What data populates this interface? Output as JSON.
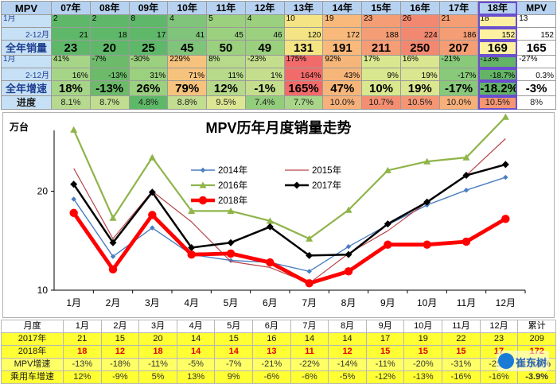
{
  "top_table": {
    "corner": "MPV",
    "years": [
      "07年",
      "08年",
      "09年",
      "10年",
      "11年",
      "12年",
      "13年",
      "14年",
      "15年",
      "16年",
      "17年",
      "18年",
      "MPV"
    ],
    "rows": {
      "jan": {
        "label": "1月",
        "values": [
          "2",
          "2",
          "8",
          "4",
          "5",
          "4",
          "10",
          "19",
          "23",
          "26",
          "21",
          "18",
          "13"
        ]
      },
      "feb": {
        "label": "2-12月",
        "values": [
          "21",
          "18",
          "17",
          "41",
          "45",
          "46",
          "120",
          "172",
          "188",
          "224",
          "186",
          "152",
          "152"
        ]
      },
      "full": {
        "label": "全年销量",
        "values": [
          "23",
          "20",
          "25",
          "45",
          "50",
          "49",
          "131",
          "191",
          "211",
          "250",
          "207",
          "169",
          "165"
        ]
      },
      "jan_g": {
        "label": "1月",
        "values": [
          "41%",
          "-7%",
          "-30%",
          "229%",
          "8%",
          "-23%",
          "175%",
          "92%",
          "17%",
          "16%",
          "-21%",
          "-13%",
          "-27%"
        ]
      },
      "feb_g": {
        "label": "2-12月",
        "values": [
          "16%",
          "-13%",
          "31%",
          "71%",
          "11%",
          "1%",
          "164%",
          "43%",
          "9%",
          "19%",
          "-17%",
          "-18.7%",
          "0.3%"
        ]
      },
      "full_g": {
        "label": "全年增速",
        "values": [
          "18%",
          "-13%",
          "26%",
          "79%",
          "12%",
          "-1%",
          "165%",
          "47%",
          "10%",
          "19%",
          "-17%",
          "-18.2%",
          "-3%"
        ]
      },
      "prog": {
        "label": "进度",
        "values": [
          "8.1%",
          "8.7%",
          "4.8%",
          "8.8%",
          "9.5%",
          "7.4%",
          "7.7%",
          "10.0%",
          "10.7%",
          "10.5%",
          "10.0%",
          "10.5%",
          "8%"
        ]
      }
    },
    "colors": {
      "volume": [
        "#5fb86a",
        "#5fb86a",
        "#5fb86a",
        "#7fc47a",
        "#9bd07f",
        "#9bd07f",
        "#f4e483",
        "#f8b97a",
        "#f59d74",
        "#f28870",
        "#f59d74",
        "#fdf0a0",
        "#ffffff"
      ],
      "growth": [
        "#a6d588",
        "#6cba6a",
        "#9bd07f",
        "#f6c37e",
        "#b6d98a",
        "#c4de8e",
        "#f26b6b",
        "#f7b679",
        "#d9e88f",
        "#dbe690",
        "#88c97a",
        "#63b466",
        "#ffffff"
      ],
      "progress": [
        "#b7d98f",
        "#c1dd90",
        "#5db967",
        "#c1dd90",
        "#dde692",
        "#92cd7c",
        "#a9d588",
        "#f7b07a",
        "#f48e70",
        "#f59572",
        "#f7b07a",
        "#f59572",
        "#ffffff"
      ]
    }
  },
  "chart_data": {
    "type": "line",
    "title": "MPV历年月度销量走势",
    "ylabel": "万台",
    "categories": [
      "1月",
      "2月",
      "3月",
      "4月",
      "5月",
      "6月",
      "7月",
      "8月",
      "9月",
      "10月",
      "11月",
      "12月"
    ],
    "ylim": [
      10,
      25.5
    ],
    "yticks": [
      10,
      20
    ],
    "series": [
      {
        "name": "2014年",
        "color": "#4a7ec2",
        "width": 1.4,
        "marker": "diamond",
        "values": [
          19.2,
          13.4,
          16.3,
          13.6,
          13.0,
          12.8,
          11.9,
          14.4,
          16.6,
          18.6,
          20.1,
          21.4
        ]
      },
      {
        "name": "2015年",
        "color": "#b7474a",
        "width": 1.2,
        "marker": "none",
        "values": [
          22.3,
          15.2,
          20.0,
          16.9,
          12.9,
          12.3,
          10.7,
          13.7,
          16.0,
          18.9,
          21.6,
          25.3
        ]
      },
      {
        "name": "2016年",
        "color": "#8fb44a",
        "width": 2.2,
        "marker": "triangle",
        "values": [
          26.2,
          17.3,
          23.4,
          18.0,
          18.0,
          17.0,
          15.2,
          18.1,
          22.1,
          23.0,
          23.4,
          27.5
        ]
      },
      {
        "name": "2017年",
        "color": "#000000",
        "width": 2.5,
        "marker": "diamond",
        "values": [
          20.7,
          14.8,
          19.9,
          14.3,
          14.8,
          16.4,
          13.5,
          13.6,
          16.7,
          18.9,
          21.6,
          22.7
        ]
      },
      {
        "name": "2018年",
        "color": "#ff0000",
        "width": 4.8,
        "marker": "circle",
        "values": [
          17.8,
          12.1,
          17.6,
          13.6,
          13.7,
          12.8,
          10.7,
          11.9,
          14.6,
          14.6,
          14.9,
          17.2
        ]
      }
    ],
    "legend_position": "upper-center",
    "grid": false
  },
  "bottom_table": {
    "header": [
      "月度",
      "1月",
      "2月",
      "3月",
      "4月",
      "5月",
      "6月",
      "7月",
      "8月",
      "9月",
      "10月",
      "11月",
      "12月",
      "累计"
    ],
    "rows": [
      {
        "key": "b-2017",
        "values": [
          "2017年",
          "21",
          "15",
          "20",
          "14",
          "15",
          "16",
          "14",
          "14",
          "17",
          "19",
          "22",
          "23",
          "209"
        ]
      },
      {
        "key": "b-2018",
        "values": [
          "2018年",
          "18",
          "12",
          "18",
          "14",
          "14",
          "13",
          "11",
          "12",
          "15",
          "15",
          "15",
          "17",
          "172"
        ]
      },
      {
        "key": "b-mpv",
        "values": [
          "MPV增速",
          "-13%",
          "-18%",
          "-11%",
          "-5%",
          "-7%",
          "-21%",
          "-22%",
          "-14%",
          "-11%",
          "-20%",
          "-31%",
          "-25%",
          "-18.2%"
        ]
      },
      {
        "key": "b-car",
        "values": [
          "乘用车增速",
          "12%",
          "-9%",
          "5%",
          "13%",
          "9%",
          "-6%",
          "-6%",
          "-5%",
          "-12%",
          "-13%",
          "-16%",
          "-16%",
          "-3.9%"
        ]
      }
    ]
  },
  "watermark": {
    "text": "崔东树"
  }
}
